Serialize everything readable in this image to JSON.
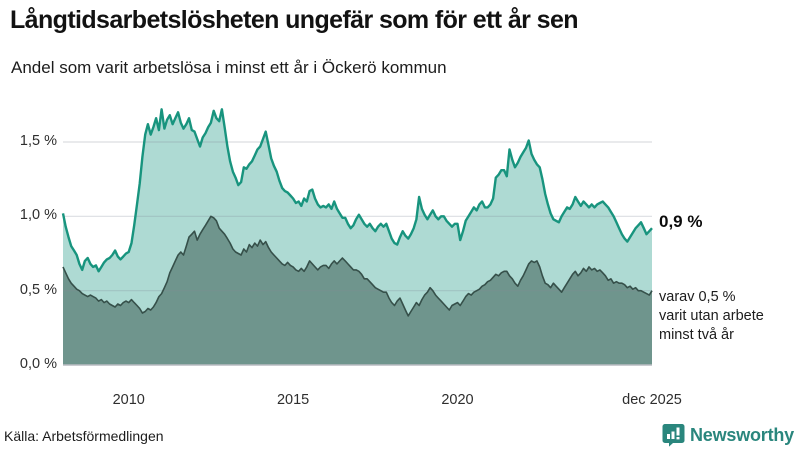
{
  "header": {
    "title": "Långtidsarbetslösheten ungefär som för ett år sen",
    "subtitle": "Andel som varit arbetslösa i minst ett år i Öckerö kommun"
  },
  "annotations": {
    "latest_label": "0,9 %",
    "sub_lines": [
      "varav 0,5 %",
      "varit utan arbete",
      "minst två år"
    ]
  },
  "footer": {
    "source": "Källa: Arbetsförmedlingen",
    "logo_text": "Newsworthy"
  },
  "colors": {
    "teal_line": "#18947e",
    "light_fill": "#aedad3",
    "dark_fill": "#6f958d",
    "dark_line": "#36504a",
    "grid": "#808896",
    "baseline": "#b9bcc2",
    "logo_teal": "#2a867d"
  },
  "chart_data": {
    "type": "area",
    "title": "Långtidsarbetslösheten ungefär som för ett år sen",
    "subtitle": "Andel som varit arbetslösa i minst ett år i Öckerö kommun",
    "unit": "%",
    "frequency": "monthly",
    "start": "2008-01",
    "end": "2025-12",
    "grid": true,
    "legend_position": "none",
    "ylim": [
      0,
      1.75
    ],
    "yticks": [
      {
        "value": 0.0,
        "label": "0,0 %"
      },
      {
        "value": 0.5,
        "label": "0,5 %"
      },
      {
        "value": 1.0,
        "label": "1,0 %"
      },
      {
        "value": 1.5,
        "label": "1,5 %"
      }
    ],
    "xticks": [
      {
        "index": 24,
        "label": "2010"
      },
      {
        "index": 84,
        "label": "2015"
      },
      {
        "index": 144,
        "label": "2020"
      },
      {
        "index": 215,
        "label": "dec 2025"
      }
    ],
    "series": [
      {
        "name": "Andel arbetslösa minst ett år",
        "role": "upper",
        "latest_value": 0.9,
        "values": [
          1.02,
          0.93,
          0.86,
          0.8,
          0.77,
          0.74,
          0.68,
          0.64,
          0.7,
          0.72,
          0.68,
          0.66,
          0.67,
          0.63,
          0.66,
          0.69,
          0.71,
          0.72,
          0.74,
          0.77,
          0.73,
          0.71,
          0.73,
          0.75,
          0.76,
          0.82,
          0.94,
          1.08,
          1.22,
          1.4,
          1.55,
          1.62,
          1.55,
          1.6,
          1.66,
          1.58,
          1.72,
          1.59,
          1.65,
          1.68,
          1.62,
          1.66,
          1.7,
          1.63,
          1.59,
          1.62,
          1.66,
          1.58,
          1.57,
          1.52,
          1.47,
          1.53,
          1.56,
          1.6,
          1.63,
          1.71,
          1.66,
          1.64,
          1.72,
          1.6,
          1.47,
          1.37,
          1.3,
          1.26,
          1.21,
          1.23,
          1.33,
          1.32,
          1.35,
          1.37,
          1.41,
          1.45,
          1.47,
          1.52,
          1.57,
          1.48,
          1.39,
          1.34,
          1.3,
          1.24,
          1.19,
          1.17,
          1.16,
          1.14,
          1.12,
          1.09,
          1.1,
          1.07,
          1.12,
          1.1,
          1.17,
          1.18,
          1.12,
          1.08,
          1.06,
          1.07,
          1.06,
          1.08,
          1.05,
          1.1,
          1.05,
          1.02,
          0.99,
          0.99,
          0.95,
          0.92,
          0.94,
          0.98,
          1.01,
          0.98,
          0.95,
          0.93,
          0.95,
          0.92,
          0.9,
          0.93,
          0.95,
          0.93,
          0.95,
          0.9,
          0.85,
          0.82,
          0.81,
          0.86,
          0.9,
          0.87,
          0.85,
          0.88,
          0.92,
          0.98,
          1.13,
          1.05,
          1.01,
          0.98,
          1.01,
          1.04,
          1.0,
          0.98,
          1.0,
          1.0,
          0.97,
          0.95,
          0.93,
          0.95,
          0.95,
          0.84,
          0.9,
          0.97,
          1.0,
          1.03,
          1.06,
          1.04,
          1.08,
          1.1,
          1.06,
          1.06,
          1.08,
          1.12,
          1.26,
          1.28,
          1.31,
          1.31,
          1.27,
          1.45,
          1.38,
          1.33,
          1.36,
          1.4,
          1.43,
          1.46,
          1.51,
          1.42,
          1.38,
          1.35,
          1.33,
          1.25,
          1.15,
          1.08,
          1.02,
          0.98,
          0.97,
          0.96,
          1.0,
          1.03,
          1.06,
          1.05,
          1.08,
          1.13,
          1.1,
          1.07,
          1.1,
          1.08,
          1.06,
          1.08,
          1.06,
          1.08,
          1.09,
          1.1,
          1.08,
          1.06,
          1.03,
          1.0,
          0.96,
          0.92,
          0.88,
          0.85,
          0.83,
          0.86,
          0.89,
          0.92,
          0.94,
          0.96,
          0.92,
          0.88,
          0.9,
          0.92
        ]
      },
      {
        "name": "varav varit utan arbete minst två år",
        "role": "lower",
        "latest_value": 0.5,
        "values": [
          0.66,
          0.62,
          0.58,
          0.55,
          0.53,
          0.51,
          0.5,
          0.48,
          0.47,
          0.46,
          0.47,
          0.46,
          0.45,
          0.43,
          0.44,
          0.42,
          0.43,
          0.41,
          0.4,
          0.39,
          0.41,
          0.4,
          0.42,
          0.43,
          0.42,
          0.44,
          0.42,
          0.4,
          0.38,
          0.35,
          0.36,
          0.38,
          0.37,
          0.39,
          0.42,
          0.46,
          0.48,
          0.52,
          0.56,
          0.62,
          0.66,
          0.7,
          0.74,
          0.76,
          0.74,
          0.8,
          0.86,
          0.88,
          0.9,
          0.84,
          0.88,
          0.91,
          0.94,
          0.97,
          1.0,
          0.99,
          0.97,
          0.92,
          0.9,
          0.88,
          0.85,
          0.82,
          0.78,
          0.76,
          0.75,
          0.74,
          0.78,
          0.76,
          0.81,
          0.79,
          0.82,
          0.8,
          0.84,
          0.81,
          0.83,
          0.79,
          0.76,
          0.74,
          0.72,
          0.7,
          0.68,
          0.67,
          0.69,
          0.67,
          0.66,
          0.64,
          0.63,
          0.65,
          0.63,
          0.66,
          0.7,
          0.68,
          0.66,
          0.64,
          0.66,
          0.67,
          0.67,
          0.65,
          0.68,
          0.7,
          0.68,
          0.7,
          0.72,
          0.7,
          0.68,
          0.66,
          0.64,
          0.64,
          0.63,
          0.61,
          0.58,
          0.58,
          0.56,
          0.54,
          0.52,
          0.51,
          0.5,
          0.49,
          0.49,
          0.45,
          0.42,
          0.4,
          0.43,
          0.45,
          0.41,
          0.37,
          0.33,
          0.36,
          0.39,
          0.42,
          0.4,
          0.44,
          0.47,
          0.49,
          0.52,
          0.5,
          0.47,
          0.45,
          0.43,
          0.41,
          0.39,
          0.37,
          0.4,
          0.41,
          0.42,
          0.4,
          0.43,
          0.46,
          0.48,
          0.47,
          0.49,
          0.5,
          0.51,
          0.53,
          0.54,
          0.56,
          0.57,
          0.59,
          0.61,
          0.6,
          0.62,
          0.63,
          0.63,
          0.6,
          0.58,
          0.55,
          0.53,
          0.57,
          0.6,
          0.64,
          0.68,
          0.7,
          0.69,
          0.7,
          0.66,
          0.6,
          0.55,
          0.54,
          0.52,
          0.55,
          0.53,
          0.51,
          0.49,
          0.52,
          0.55,
          0.58,
          0.61,
          0.63,
          0.6,
          0.62,
          0.65,
          0.63,
          0.66,
          0.64,
          0.65,
          0.63,
          0.64,
          0.62,
          0.6,
          0.57,
          0.58,
          0.55,
          0.56,
          0.55,
          0.55,
          0.54,
          0.52,
          0.53,
          0.51,
          0.52,
          0.5,
          0.5,
          0.49,
          0.48,
          0.47,
          0.5
        ]
      }
    ]
  }
}
